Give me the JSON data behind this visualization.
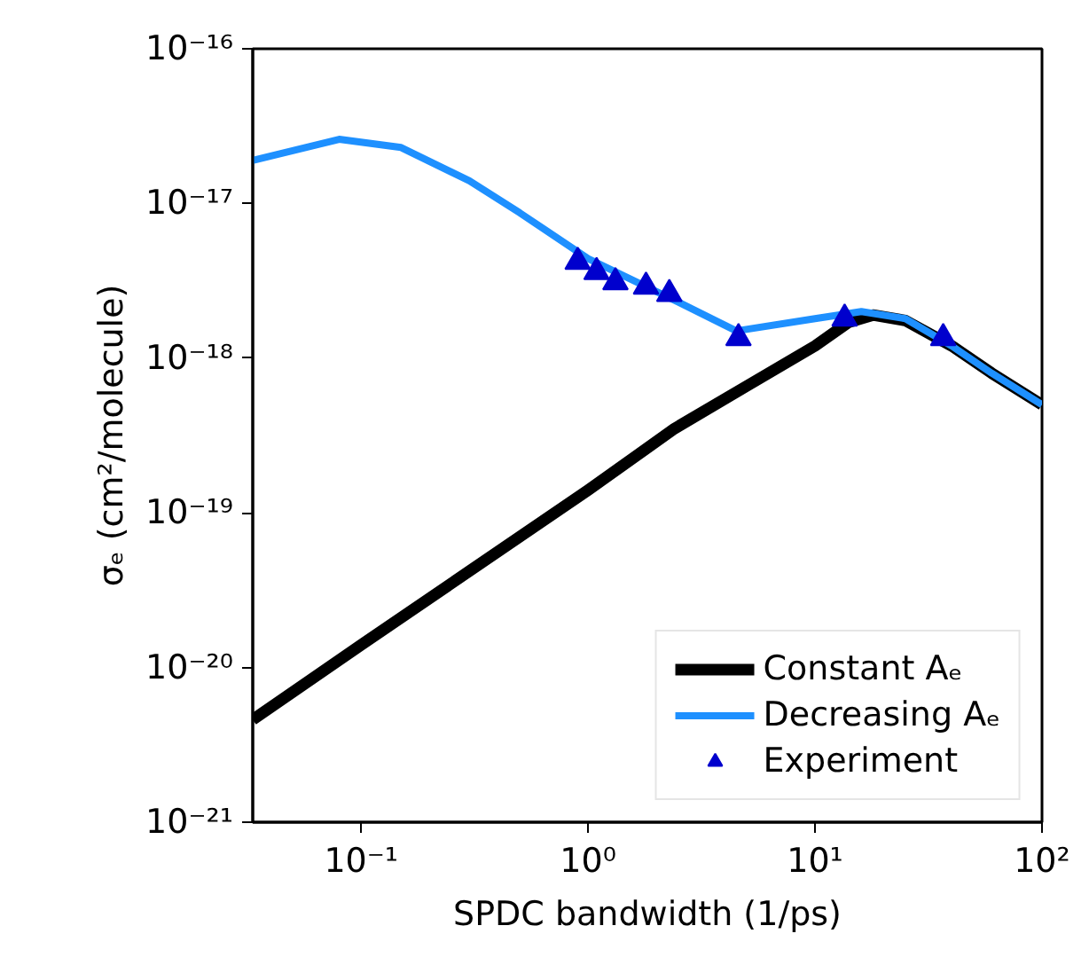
{
  "chart_data": {
    "type": "line",
    "xlabel": "SPDC bandwidth (1/ps)",
    "ylabel": "σₑ (cm²/molecule)",
    "log": "xy",
    "grid": false,
    "legend": "bottom right",
    "xlim": [
      0.0333,
      100
    ],
    "ylim": [
      1e-21,
      1e-16
    ],
    "xticks": [
      {
        "value": 0.1,
        "label": "10⁻¹"
      },
      {
        "value": 1,
        "label": "10⁰"
      },
      {
        "value": 10,
        "label": "10¹"
      },
      {
        "value": 100,
        "label": "10²"
      }
    ],
    "yticks": [
      {
        "value": 1e-21,
        "label": "10⁻²¹"
      },
      {
        "value": 1e-20,
        "label": "10⁻²⁰"
      },
      {
        "value": 1e-19,
        "label": "10⁻¹⁹"
      },
      {
        "value": 1e-18,
        "label": "10⁻¹⁸"
      },
      {
        "value": 1e-17,
        "label": "10⁻¹⁷"
      },
      {
        "value": 1e-16,
        "label": "10⁻¹⁶"
      }
    ],
    "series": [
      {
        "name": "Constant Aₑ",
        "color": "#000000",
        "line_style": "solid",
        "marker": "none",
        "x": [
          0.0333,
          0.1,
          1,
          2.4,
          5,
          10,
          14,
          18,
          25,
          40,
          60,
          100
        ],
        "values": [
          4.6e-21,
          1.4e-20,
          1.4e-19,
          3.5e-19,
          6.6e-19,
          1.2e-18,
          1.7e-18,
          1.9e-18,
          1.75e-18,
          1.2e-18,
          8e-19,
          5e-19
        ]
      },
      {
        "name": "Decreasing Aₑ",
        "color": "#1e90ff",
        "line_style": "solid",
        "marker": "none",
        "x": [
          0.0333,
          0.08,
          0.15,
          0.3,
          0.5,
          1,
          2.5,
          4.5,
          10,
          16,
          25,
          40,
          60,
          100
        ],
        "values": [
          1.9e-17,
          2.6e-17,
          2.3e-17,
          1.4e-17,
          8.7e-18,
          4.4e-18,
          2.3e-18,
          1.5e-18,
          1.8e-18,
          2e-18,
          1.8e-18,
          1.2e-18,
          8e-19,
          5e-19
        ]
      },
      {
        "name": "Experiment",
        "type": "scatter",
        "color": "#0000cd",
        "marker": "triangle",
        "x": [
          0.9,
          1.09,
          1.32,
          1.8,
          2.28,
          4.6,
          13.5,
          36.7
        ],
        "values": [
          4.2e-18,
          3.6e-18,
          3.1e-18,
          2.9e-18,
          2.6e-18,
          1.35e-18,
          1.8e-18,
          1.35e-18
        ]
      }
    ]
  }
}
